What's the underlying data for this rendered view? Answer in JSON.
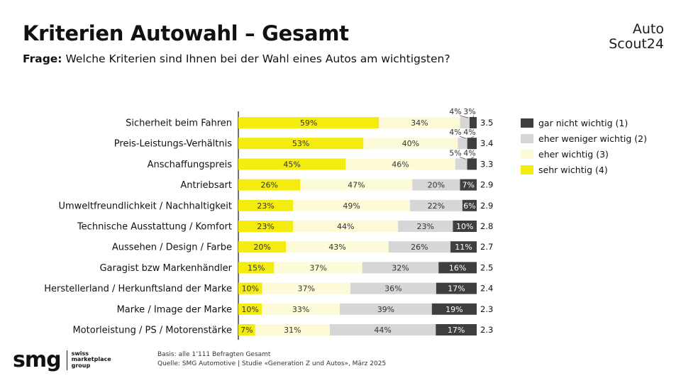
{
  "header": {
    "title": "Kriterien Autowahl – Gesamt",
    "question_label": "Frage:",
    "question_text": " Welche Kriterien sind Ihnen bei der Wahl eines Autos am wichtigsten?"
  },
  "brand": {
    "line1": "Auto",
    "line2": "Scout24"
  },
  "footer": {
    "logo_main": "smg",
    "logo_sub": [
      "swiss",
      "marketplace",
      "group"
    ],
    "basis": "Basis: alle 1’111 Befragten Gesamt",
    "source": "Quelle: SMG Automotive | Studie «Generation Z und Autos», März 2025"
  },
  "chart_data": {
    "type": "bar",
    "orientation": "horizontal",
    "stacked": true,
    "percent": true,
    "legend_position": "right",
    "categories": [
      "Sicherheit beim Fahren",
      "Preis-Leistungs-Verhältnis",
      "Anschaffungspreis",
      "Antriebsart",
      "Umweltfreundlichkeit / Nachhaltigkeit",
      "Technische Ausstattung / Komfort",
      "Aussehen / Design / Farbe",
      "Garagist bzw  Markenhändler",
      "Herstellerland / Herkunftsland der Marke",
      "Marke / Image der Marke",
      "Motorleistung / PS / Motorenstärke"
    ],
    "series": [
      {
        "name": "sehr wichtig (4)",
        "color": "#f5ec0f",
        "values": [
          59,
          53,
          45,
          26,
          23,
          23,
          20,
          15,
          10,
          10,
          7
        ]
      },
      {
        "name": "eher wichtig (3)",
        "color": "#fdfad8",
        "values": [
          34,
          40,
          46,
          47,
          49,
          44,
          43,
          37,
          37,
          33,
          31
        ]
      },
      {
        "name": "eher weniger wichtig (2)",
        "color": "#d6d6d6",
        "values": [
          4,
          4,
          5,
          20,
          22,
          23,
          26,
          32,
          36,
          39,
          44
        ]
      },
      {
        "name": "gar nicht wichtig (1)",
        "color": "#3f3f3f",
        "values": [
          3,
          4,
          4,
          7,
          6,
          10,
          11,
          16,
          17,
          19,
          17
        ]
      }
    ],
    "scores": [
      "3.5",
      "3.4",
      "3.3",
      "2.9",
      "2.9",
      "2.8",
      "2.7",
      "2.5",
      "2.4",
      "2.3",
      "2.3"
    ],
    "legend": [
      {
        "label": "gar nicht wichtig (1)",
        "color": "#3f3f3f"
      },
      {
        "label": "eher weniger wichtig (2)",
        "color": "#d6d6d6"
      },
      {
        "label": "eher wichtig (3)",
        "color": "#fdfad8"
      },
      {
        "label": "sehr wichtig (4)",
        "color": "#f5ec0f"
      }
    ]
  }
}
